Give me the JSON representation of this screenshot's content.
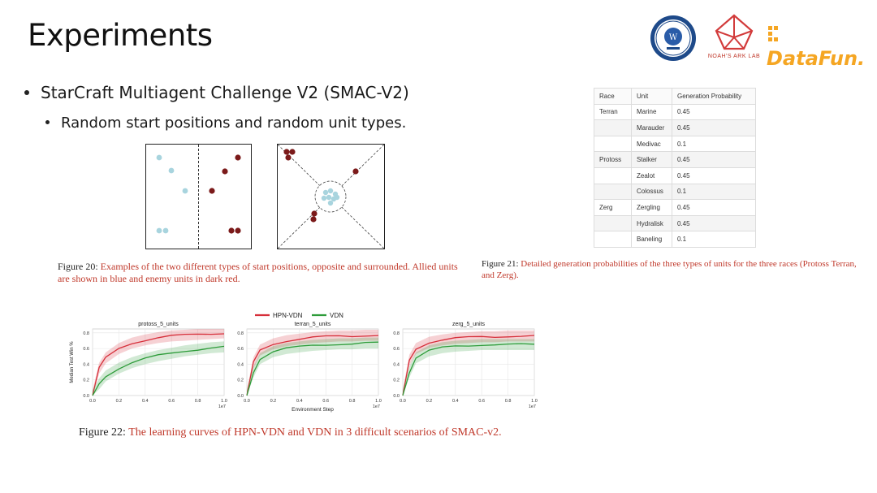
{
  "slide": {
    "title": "Experiments",
    "bullet1": "StarCraft Multiagent Challenge V2 (SMAC-V2)",
    "bullet2": "Random start positions and random unit types."
  },
  "logos": {
    "noah_label": "NOAH'S ARK LAB",
    "datafun": "DataFun."
  },
  "figure20": {
    "label": "Figure 20:",
    "text": "Examples of the two different types of start positions, opposite and surrounded. Allied units are shown in blue and enemy units in dark red."
  },
  "figure21": {
    "label": "Figure 21:",
    "text": "Detailed generation probabilities of the three types of units for the three races (Protoss Terran, and Zerg).",
    "headers": [
      "Race",
      "Unit",
      "Generation Probability"
    ],
    "rows": [
      [
        "Terran",
        "Marine",
        "0.45"
      ],
      [
        "",
        "Marauder",
        "0.45"
      ],
      [
        "",
        "Medivac",
        "0.1"
      ],
      [
        "Protoss",
        "Stalker",
        "0.45"
      ],
      [
        "",
        "Zealot",
        "0.45"
      ],
      [
        "",
        "Colossus",
        "0.1"
      ],
      [
        "Zerg",
        "Zergling",
        "0.45"
      ],
      [
        "",
        "Hydralisk",
        "0.45"
      ],
      [
        "",
        "Baneling",
        "0.1"
      ]
    ]
  },
  "figure22": {
    "label": "Figure 22:",
    "text": "The learning curves of HPN-VDN and VDN in 3 difficult scenarios of SMAC-v2."
  },
  "colors": {
    "allied": "#a8d4de",
    "enemy": "#7b1a1a",
    "hpn": "#d62f3a",
    "vdn": "#2e9c3a",
    "caption_red": "#c0392b"
  },
  "chart_data": [
    {
      "type": "line",
      "title": "protoss_5_units",
      "ylabel": "Median Test Win %",
      "xlabel": "",
      "x_tick_labels": [
        "0.0",
        "0.2",
        "0.4",
        "0.6",
        "0.8",
        "1.0"
      ],
      "y_tick_labels": [
        "0.0",
        "0.2",
        "0.4",
        "0.6",
        "0.8"
      ],
      "x_multiplier": "1e7",
      "xlim": [
        0,
        1.0
      ],
      "ylim": [
        0,
        0.85
      ],
      "legend": [
        "HPN-VDN",
        "VDN"
      ],
      "x": [
        0,
        0.05,
        0.1,
        0.2,
        0.3,
        0.4,
        0.5,
        0.6,
        0.7,
        0.8,
        0.9,
        1.0
      ],
      "series": [
        {
          "name": "HPN-VDN",
          "values": [
            0.0,
            0.35,
            0.48,
            0.6,
            0.67,
            0.71,
            0.74,
            0.76,
            0.77,
            0.78,
            0.79,
            0.8
          ]
        },
        {
          "name": "VDN",
          "values": [
            0.0,
            0.15,
            0.25,
            0.35,
            0.42,
            0.47,
            0.51,
            0.54,
            0.57,
            0.59,
            0.61,
            0.62
          ]
        }
      ]
    },
    {
      "type": "line",
      "title": "terran_5_units",
      "ylabel": "",
      "xlabel": "Environment Step",
      "x_tick_labels": [
        "0.0",
        "0.2",
        "0.4",
        "0.6",
        "0.8",
        "1.0"
      ],
      "y_tick_labels": [
        "0.0",
        "0.2",
        "0.4",
        "0.6",
        "0.8"
      ],
      "x_multiplier": "1e7",
      "xlim": [
        0,
        1.0
      ],
      "ylim": [
        0,
        0.85
      ],
      "legend": [
        "HPN-VDN",
        "VDN"
      ],
      "x": [
        0,
        0.05,
        0.1,
        0.2,
        0.3,
        0.4,
        0.5,
        0.6,
        0.7,
        0.8,
        0.9,
        1.0
      ],
      "series": [
        {
          "name": "HPN-VDN",
          "values": [
            0.0,
            0.42,
            0.58,
            0.66,
            0.7,
            0.72,
            0.74,
            0.75,
            0.76,
            0.76,
            0.77,
            0.77
          ]
        },
        {
          "name": "VDN",
          "values": [
            0.0,
            0.3,
            0.47,
            0.56,
            0.6,
            0.62,
            0.64,
            0.65,
            0.66,
            0.66,
            0.67,
            0.67
          ]
        }
      ]
    },
    {
      "type": "line",
      "title": "zerg_5_units",
      "ylabel": "",
      "xlabel": "",
      "x_tick_labels": [
        "0.0",
        "0.2",
        "0.4",
        "0.6",
        "0.8",
        "1.0"
      ],
      "y_tick_labels": [
        "0.0",
        "0.2",
        "0.4",
        "0.6",
        "0.8"
      ],
      "x_multiplier": "1e7",
      "xlim": [
        0,
        1.0
      ],
      "ylim": [
        0,
        0.85
      ],
      "legend": [
        "HPN-VDN",
        "VDN"
      ],
      "x": [
        0,
        0.05,
        0.1,
        0.2,
        0.3,
        0.4,
        0.5,
        0.6,
        0.7,
        0.8,
        0.9,
        1.0
      ],
      "series": [
        {
          "name": "HPN-VDN",
          "values": [
            0.0,
            0.45,
            0.6,
            0.68,
            0.71,
            0.73,
            0.74,
            0.75,
            0.75,
            0.76,
            0.76,
            0.76
          ]
        },
        {
          "name": "VDN",
          "values": [
            0.0,
            0.3,
            0.48,
            0.57,
            0.61,
            0.63,
            0.64,
            0.65,
            0.65,
            0.65,
            0.65,
            0.65
          ]
        }
      ]
    }
  ]
}
